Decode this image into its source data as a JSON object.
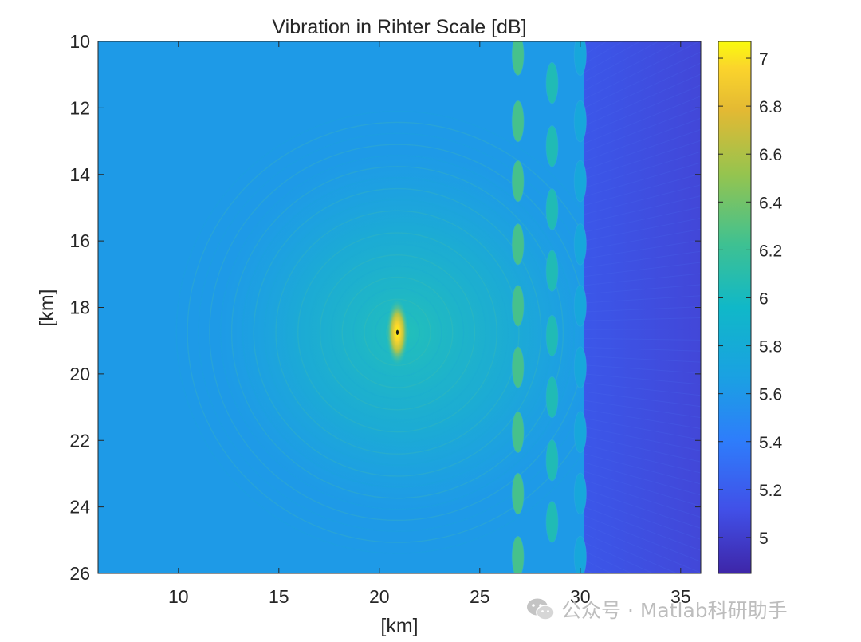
{
  "chart_data": {
    "type": "heatmap",
    "title": "Vibration in Rihter Scale [dB]",
    "xlabel": "[km]",
    "ylabel": "[km]",
    "xlim": [
      6,
      36
    ],
    "ylim": [
      10,
      26
    ],
    "y_reversed": true,
    "xticks": [
      10,
      15,
      20,
      25,
      30,
      35
    ],
    "yticks": [
      10,
      12,
      14,
      16,
      18,
      20,
      22,
      24,
      26
    ],
    "colorbar": {
      "range": [
        4.85,
        7.07
      ],
      "ticks": [
        5,
        5.2,
        5.4,
        5.6,
        5.8,
        6,
        6.2,
        6.4,
        6.6,
        6.8,
        7
      ],
      "colormap": "parula"
    },
    "source": {
      "x": 20.9,
      "y": 18.75,
      "peak": 7.0
    },
    "background_level": 5.62,
    "cylinder_columns": [
      {
        "x": 26.9,
        "y": [
          10.4,
          12.4,
          14.2,
          16.1,
          17.95,
          19.8,
          21.75,
          23.6,
          25.5
        ],
        "value": 6.25
      },
      {
        "x": 28.6,
        "y": [
          11.25,
          13.15,
          15.05,
          16.9,
          18.85,
          20.7,
          22.6,
          24.45
        ],
        "value": 6.05
      },
      {
        "x": 30.0,
        "y": [
          10.4,
          12.4,
          14.2,
          16.1,
          17.95,
          19.8,
          21.75,
          23.6,
          25.5
        ],
        "value": 5.75
      }
    ],
    "shadow_region": {
      "x_start": 30.2,
      "x_end": 36,
      "value": 5.12
    },
    "grid": false,
    "colorbar_placement": "right"
  },
  "watermark": {
    "icon": "wechat-icon",
    "text": "公众号 · Matlab科研助手"
  }
}
